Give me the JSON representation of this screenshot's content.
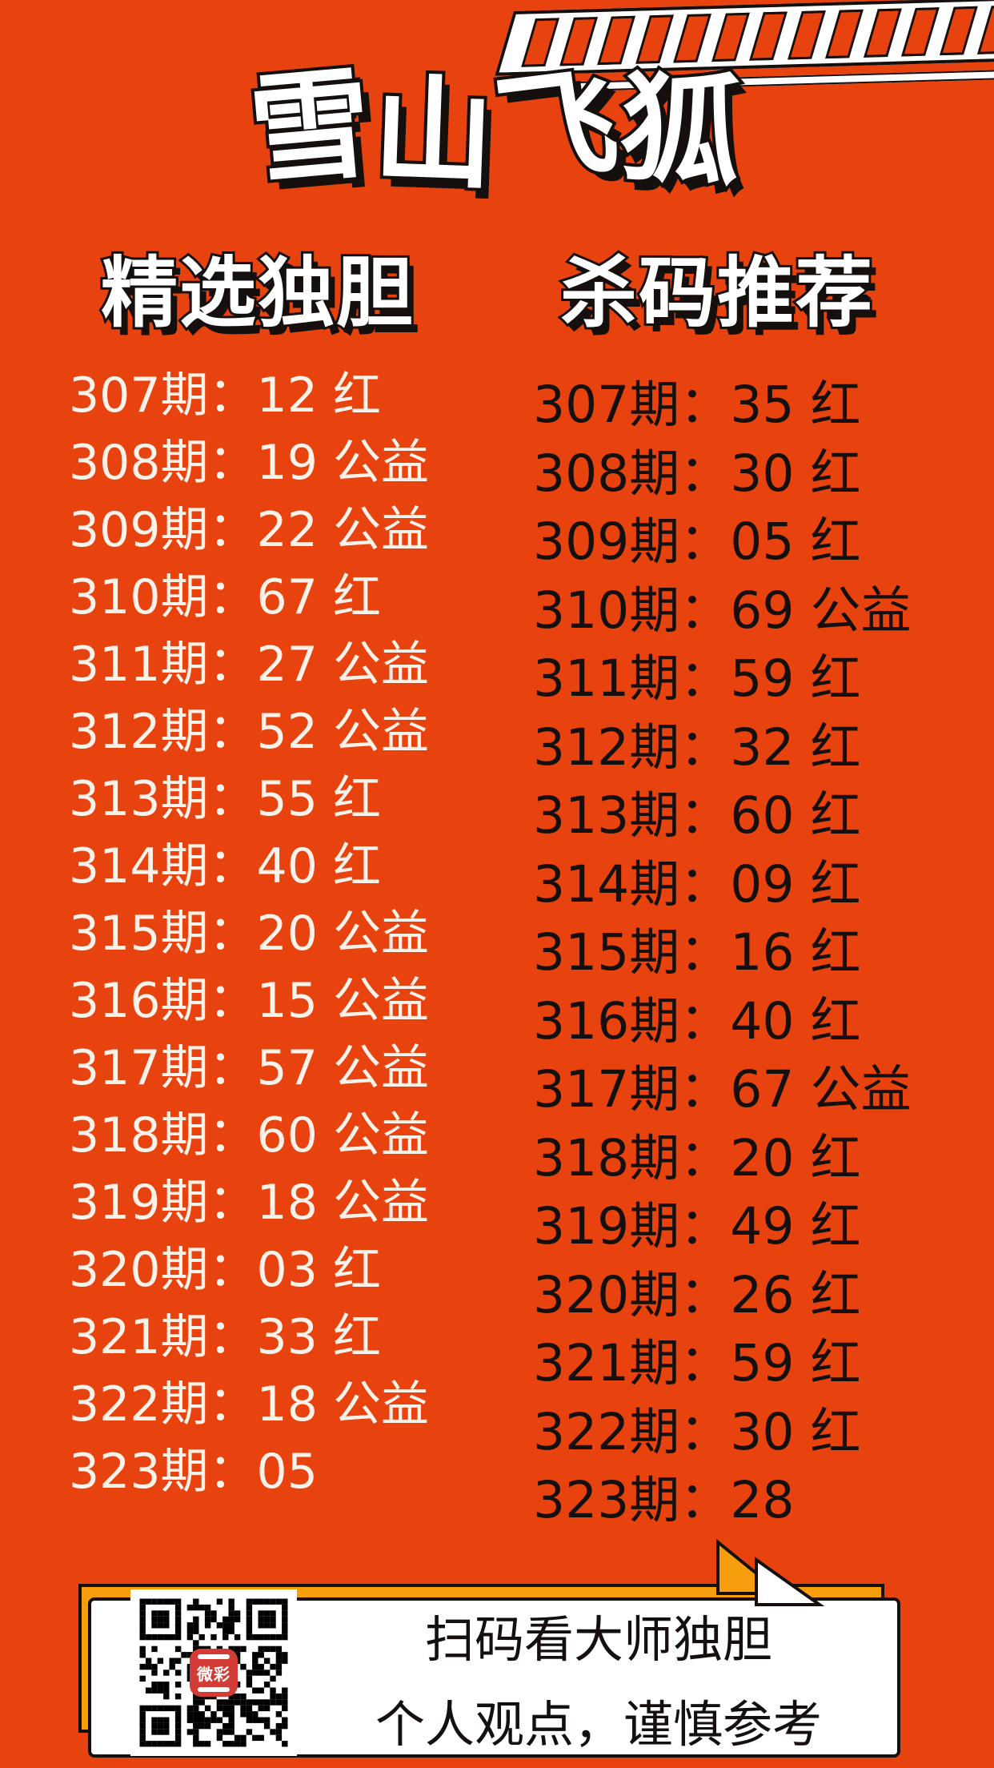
{
  "theme": {
    "background": "#E8430E",
    "outline": "#15100D",
    "amber": "#F89E0C",
    "white_text": "#FDF2E9",
    "dark_text": "#15100D",
    "qr_logo_red": "#D23C34"
  },
  "banner": {
    "stripe_count": 13
  },
  "title": {
    "text": "雪山飞狐"
  },
  "columns": [
    {
      "header": "精选独胆",
      "rows": [
        "307期：12 红",
        "308期：19 公益",
        "309期：22 公益",
        "310期：67 红",
        "311期：27 公益",
        "312期：52 公益",
        "313期：55 红",
        "314期：40 红",
        "315期：20 公益",
        "316期：15 公益",
        "317期：57 公益",
        "318期：60 公益",
        "319期：18 公益",
        "320期：03 红",
        "321期：33 红",
        "322期：18 公益",
        "323期：05"
      ]
    },
    {
      "header": "杀码推荐",
      "rows": [
        "307期：35 红",
        "308期：30 红",
        "309期：05 红",
        "310期：69 公益",
        "311期：59 红",
        "312期：32 红",
        "313期：60 红",
        "314期：09 红",
        "315期：16 红",
        "316期：40 红",
        "317期：67 公益",
        "318期：20 红",
        "319期：49 红",
        "320期：26 红",
        "321期：59 红",
        "322期：30 红",
        "323期：28"
      ]
    }
  ],
  "footer": {
    "line1": "扫码看大师独胆",
    "line2": "个人观点，谨慎参考",
    "qr_logo": "微彩"
  }
}
